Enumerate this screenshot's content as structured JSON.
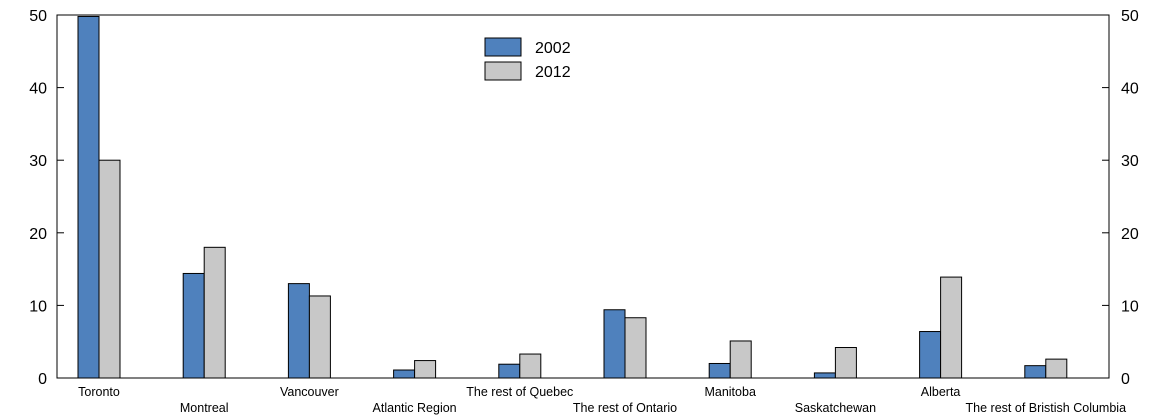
{
  "chart_data": {
    "type": "bar",
    "title": "",
    "xlabel": "",
    "ylabel": "",
    "ylim": [
      0,
      50
    ],
    "yticks": [
      0,
      10,
      20,
      30,
      40,
      50
    ],
    "grid": false,
    "legend_position": "top-center",
    "categories": [
      "Toronto",
      "Montreal",
      "Vancouver",
      "Atlantic Region",
      "The rest of Quebec",
      "The rest of Ontario",
      "Manitoba",
      "Saskatchewan",
      "Alberta",
      "The rest of Bristish Columbia"
    ],
    "series": [
      {
        "name": "2002",
        "color": "#4f81bd",
        "values": [
          49.8,
          14.4,
          13.0,
          1.1,
          1.9,
          9.4,
          2.0,
          0.7,
          6.4,
          1.7
        ]
      },
      {
        "name": "2012",
        "color": "#c8c8c8",
        "values": [
          30.0,
          18.0,
          11.3,
          2.4,
          3.3,
          8.3,
          5.1,
          4.2,
          13.9,
          2.6
        ]
      }
    ]
  }
}
